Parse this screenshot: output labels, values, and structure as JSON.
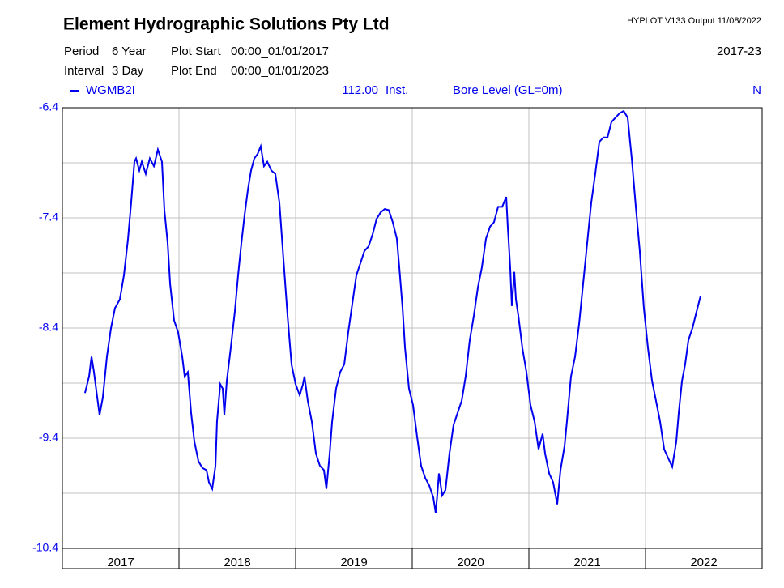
{
  "chart_data": {
    "type": "line",
    "title": "Element Hydrographic Solutions Pty Ltd",
    "software": "HYPLOT V133  Output 11/08/2022",
    "period_label": "Period",
    "period": "6 Year",
    "interval_label": "Interval",
    "interval": "3 Day",
    "plot_start_label": "Plot Start",
    "plot_start": "00:00_01/01/2017",
    "plot_end_label": "Plot End",
    "plot_end": "00:00_01/01/2023",
    "range_label": "2017-23",
    "variable": "112.00",
    "variable_type": "Inst.",
    "y_label": "Bore Level (GL=0m)",
    "quality": "N",
    "categories": [
      "2017",
      "2018",
      "2019",
      "2020",
      "2021",
      "2022"
    ],
    "xlim": [
      2017,
      2023
    ],
    "xticks": [
      2017,
      2018,
      2019,
      2020,
      2021,
      2022,
      2023
    ],
    "ylim": [
      -10.4,
      -6.4
    ],
    "yticks": [
      -6.4,
      -7.4,
      -8.4,
      -9.4,
      -10.4
    ],
    "yminor": [
      -6.9,
      -7.9,
      -8.9,
      -9.9
    ],
    "grid": true,
    "series": [
      {
        "name": "WGMB2I",
        "color": "#0000ee",
        "x": [
          2017.194,
          2017.229,
          2017.25,
          2017.271,
          2017.299,
          2017.319,
          2017.347,
          2017.382,
          2017.417,
          2017.451,
          2017.493,
          2017.528,
          2017.563,
          2017.59,
          2017.618,
          2017.632,
          2017.66,
          2017.681,
          2017.715,
          2017.75,
          2017.785,
          2017.819,
          2017.854,
          2017.875,
          2017.903,
          2017.924,
          2017.958,
          2017.993,
          2018.028,
          2018.049,
          2018.076,
          2018.104,
          2018.132,
          2018.167,
          2018.201,
          2018.236,
          2018.257,
          2018.285,
          2018.313,
          2018.326,
          2018.354,
          2018.375,
          2018.389,
          2018.41,
          2018.444,
          2018.479,
          2018.507,
          2018.535,
          2018.563,
          2018.59,
          2018.618,
          2018.646,
          2018.674,
          2018.701,
          2018.729,
          2018.757,
          2018.792,
          2018.826,
          2018.861,
          2018.896,
          2018.931,
          2018.965,
          2019.0,
          2019.035,
          2019.063,
          2019.076,
          2019.104,
          2019.139,
          2019.174,
          2019.208,
          2019.243,
          2019.264,
          2019.292,
          2019.313,
          2019.347,
          2019.382,
          2019.417,
          2019.451,
          2019.486,
          2019.521,
          2019.556,
          2019.59,
          2019.625,
          2019.66,
          2019.694,
          2019.729,
          2019.764,
          2019.799,
          2019.833,
          2019.868,
          2019.889,
          2019.917,
          2019.938,
          2019.972,
          2020.007,
          2020.042,
          2020.076,
          2020.111,
          2020.146,
          2020.181,
          2020.201,
          2020.215,
          2020.229,
          2020.257,
          2020.285,
          2020.319,
          2020.354,
          2020.389,
          2020.424,
          2020.458,
          2020.493,
          2020.528,
          2020.563,
          2020.597,
          2020.632,
          2020.667,
          2020.701,
          2020.736,
          2020.771,
          2020.806,
          2020.819,
          2020.84,
          2020.854,
          2020.875,
          2020.889,
          2020.91,
          2020.944,
          2020.979,
          2021.014,
          2021.049,
          2021.083,
          2021.118,
          2021.139,
          2021.174,
          2021.208,
          2021.243,
          2021.271,
          2021.306,
          2021.326,
          2021.361,
          2021.396,
          2021.431,
          2021.465,
          2021.5,
          2021.535,
          2021.569,
          2021.604,
          2021.639,
          2021.674,
          2021.708,
          2021.743,
          2021.778,
          2021.813,
          2021.847,
          2021.882,
          2021.917,
          2021.951,
          2021.986,
          2022.021,
          2022.056,
          2022.09,
          2022.125,
          2022.16,
          2022.194,
          2022.229,
          2022.264,
          2022.285,
          2022.313,
          2022.34,
          2022.368,
          2022.403,
          2022.438,
          2022.472
        ],
        "values": [
          -8.99,
          -8.84,
          -8.66,
          -8.8,
          -9.03,
          -9.19,
          -9.03,
          -8.66,
          -8.4,
          -8.22,
          -8.14,
          -7.92,
          -7.59,
          -7.26,
          -6.89,
          -6.86,
          -6.97,
          -6.89,
          -7.0,
          -6.86,
          -6.93,
          -6.78,
          -6.89,
          -7.33,
          -7.63,
          -8.0,
          -8.33,
          -8.44,
          -8.66,
          -8.84,
          -8.8,
          -9.17,
          -9.43,
          -9.61,
          -9.67,
          -9.69,
          -9.8,
          -9.86,
          -9.65,
          -9.25,
          -8.91,
          -8.95,
          -9.19,
          -8.88,
          -8.58,
          -8.25,
          -7.92,
          -7.63,
          -7.37,
          -7.15,
          -6.97,
          -6.86,
          -6.82,
          -6.75,
          -6.93,
          -6.89,
          -6.97,
          -7.0,
          -7.26,
          -7.78,
          -8.29,
          -8.73,
          -8.91,
          -9.01,
          -8.91,
          -8.84,
          -9.06,
          -9.25,
          -9.54,
          -9.65,
          -9.69,
          -9.86,
          -9.54,
          -9.25,
          -8.95,
          -8.8,
          -8.73,
          -8.44,
          -8.18,
          -7.92,
          -7.81,
          -7.7,
          -7.66,
          -7.55,
          -7.41,
          -7.35,
          -7.32,
          -7.33,
          -7.44,
          -7.59,
          -7.85,
          -8.22,
          -8.58,
          -8.95,
          -9.1,
          -9.39,
          -9.65,
          -9.76,
          -9.83,
          -9.94,
          -10.08,
          -9.91,
          -9.72,
          -9.92,
          -9.87,
          -9.54,
          -9.28,
          -9.17,
          -9.06,
          -8.84,
          -8.51,
          -8.29,
          -8.03,
          -7.85,
          -7.59,
          -7.48,
          -7.44,
          -7.3,
          -7.3,
          -7.21,
          -7.48,
          -7.85,
          -8.2,
          -7.89,
          -8.14,
          -8.29,
          -8.58,
          -8.8,
          -9.1,
          -9.25,
          -9.5,
          -9.36,
          -9.54,
          -9.72,
          -9.8,
          -10.0,
          -9.69,
          -9.47,
          -9.25,
          -8.84,
          -8.66,
          -8.36,
          -8.0,
          -7.63,
          -7.26,
          -7.0,
          -6.71,
          -6.67,
          -6.67,
          -6.53,
          -6.49,
          -6.45,
          -6.43,
          -6.49,
          -6.86,
          -7.3,
          -7.7,
          -8.22,
          -8.58,
          -8.88,
          -9.06,
          -9.25,
          -9.5,
          -9.58,
          -9.66,
          -9.43,
          -9.17,
          -8.88,
          -8.73,
          -8.51,
          -8.4,
          -8.25,
          -8.11
        ]
      }
    ]
  }
}
